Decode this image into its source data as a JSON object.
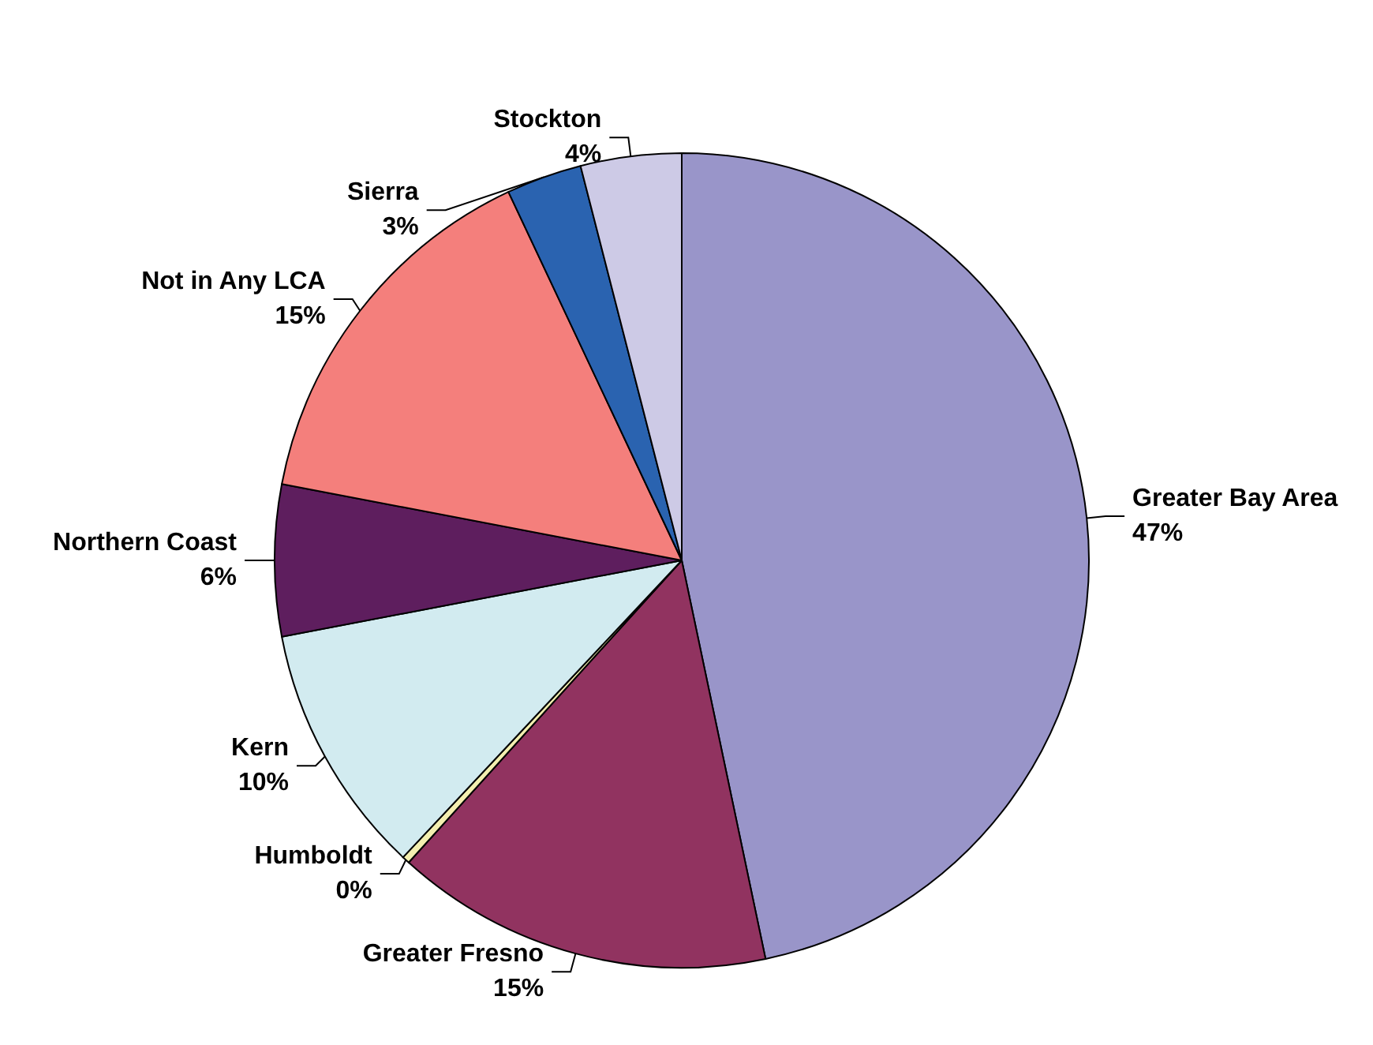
{
  "chart_data": {
    "type": "pie",
    "categories": [
      "Greater Bay Area",
      "Greater Fresno",
      "Humboldt",
      "Kern",
      "Northern Coast",
      "Not in Any LCA",
      "Sierra",
      "Stockton"
    ],
    "values": [
      46.7,
      15,
      0.3,
      10,
      6,
      15,
      3,
      4
    ],
    "colors": [
      "#9995c9",
      "#913360",
      "#f3efb0",
      "#d2ebf0",
      "#5e1e5e",
      "#f47f7c",
      "#2a63b0",
      "#cdcae6"
    ],
    "value_labels": [
      "47%",
      "15%",
      "0%",
      "10%",
      "6%",
      "15%",
      "3%",
      "4%"
    ]
  }
}
